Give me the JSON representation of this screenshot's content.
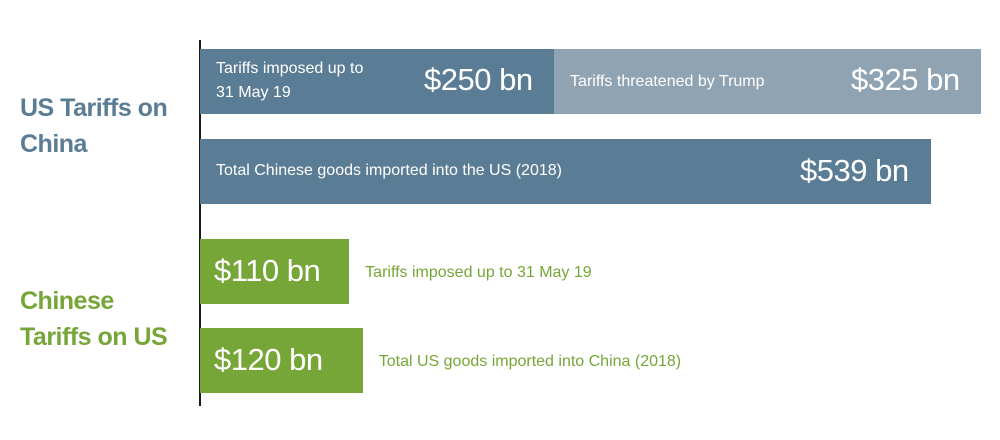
{
  "colors": {
    "us_bar": "#5a7c94",
    "us_threat": "#8fa3b2",
    "china_bar": "#76a638",
    "us_label": "#5a7c94",
    "china_label": "#76a638"
  },
  "chart_data": {
    "type": "bar",
    "orientation": "horizontal",
    "unit": "$ bn",
    "groups": [
      {
        "label": "US Tariffs on China",
        "bars": [
          {
            "stacked": true,
            "segments": [
              {
                "label": "Tariffs imposed up to 31 May 19",
                "value": 250,
                "value_label": "$250 bn"
              },
              {
                "label": "Tariffs threatened by Trump",
                "value": 325,
                "value_label": "$325 bn"
              }
            ]
          },
          {
            "label": "Total Chinese goods imported into the US (2018)",
            "value": 539,
            "value_label": "$539 bn"
          }
        ]
      },
      {
        "label": "Chinese Tariffs on US",
        "bars": [
          {
            "label": "Tariffs imposed up to 31 May 19",
            "value": 110,
            "value_label": "$110 bn"
          },
          {
            "label": "Total US goods imported into China (2018)",
            "value": 120,
            "value_label": "$120 bn"
          }
        ]
      }
    ]
  }
}
